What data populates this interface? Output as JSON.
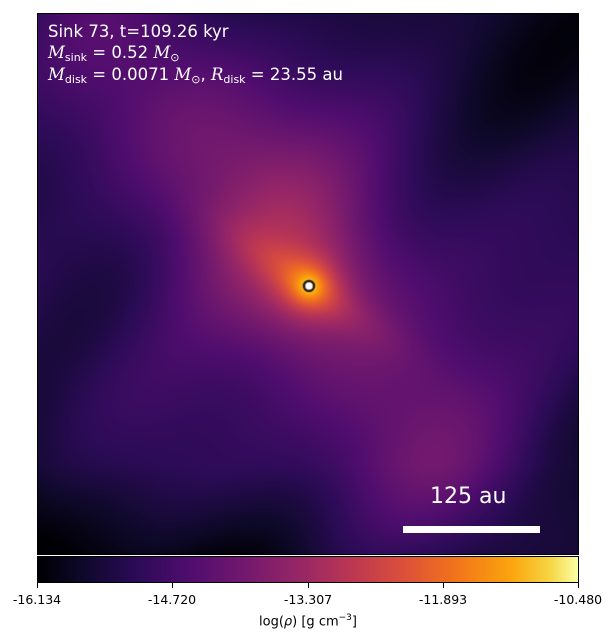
{
  "header": {
    "title": "Sink 73, t=109.26 kyr",
    "m_sink_symbol": "M",
    "m_sink_subscript": "sink",
    "m_sink_value": " = 0.52 ",
    "m_sink_unit": "M",
    "m_sink_unit_sub": "⊙",
    "m_disk_symbol": "M",
    "m_disk_subscript": "disk",
    "m_disk_value": " = 0.0071 ",
    "m_disk_unit": "M",
    "m_disk_unit_sub": "⊙",
    "sep": ", ",
    "r_disk_symbol": "R",
    "r_disk_subscript": "disk",
    "r_disk_value": " = 23.55 au"
  },
  "scale_bar": {
    "label": "125 au"
  },
  "colorbar": {
    "colormap": "inferno",
    "vmin": -16.134,
    "vmax": -10.48,
    "ticks": [
      "-16.134",
      "-14.720",
      "-13.307",
      "-11.893",
      "-10.480"
    ],
    "label_prefix": "log(",
    "label_symbol": "ρ",
    "label_mid": ") [g cm",
    "label_exp": "−3",
    "label_suffix": "]"
  },
  "colors": {
    "background": "#000004",
    "text": "#ffffff",
    "sink_marker": "#ffffff"
  }
}
